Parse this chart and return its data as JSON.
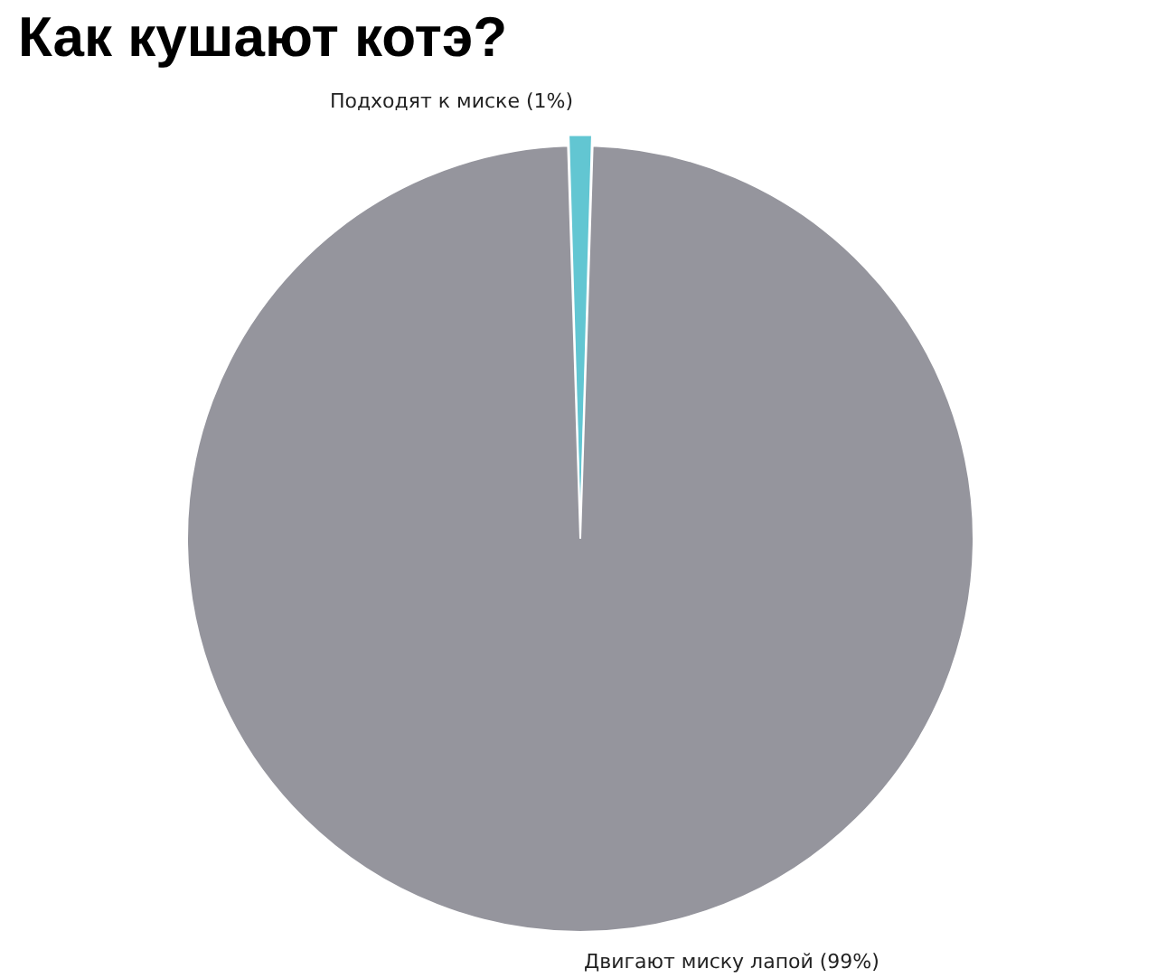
{
  "chart_data": {
    "type": "pie",
    "title": "Как кушают котэ?",
    "categories": [
      "Подходят к миске (1%)",
      "Двигают миску лапой (99%)"
    ],
    "values": [
      1,
      99
    ],
    "colors": [
      "#62c6d2",
      "#95959d"
    ]
  }
}
